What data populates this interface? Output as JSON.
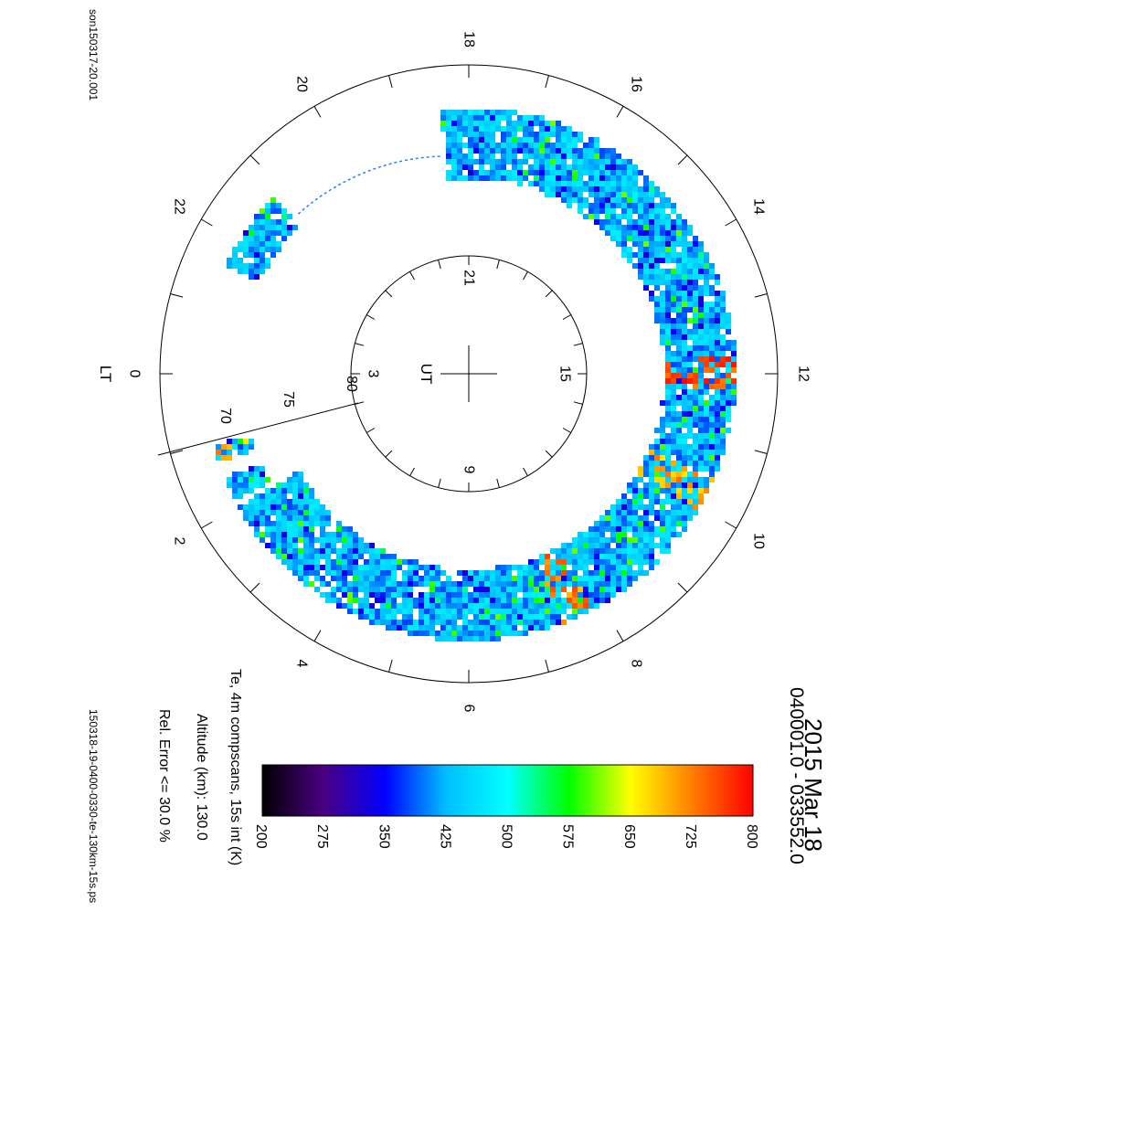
{
  "header": {
    "left_file": "son150317-20.001",
    "right_file": "150318-19-0400-0330-te-130km-15s.ps"
  },
  "chart_data": {
    "type": "heatmap",
    "projection": "polar (local time around the rim, latitude radially; figure rotated 90° clockwise)",
    "title_date": "2015 Mar 18",
    "time_range": "040001.0 - 033552.0",
    "lt_axis_label": "LT",
    "lt_ticks": [
      "0",
      "2",
      "4",
      "6",
      "8",
      "10",
      "12",
      "14",
      "16",
      "18",
      "20",
      "22"
    ],
    "ut_axis_label": "UT",
    "ut_ticks": [
      "3",
      "9",
      "15",
      "21"
    ],
    "lat_ticks": [
      "70",
      "75",
      "80"
    ],
    "colorbar": {
      "range": [
        200,
        800
      ],
      "ticks": [
        "200",
        "275",
        "350",
        "425",
        "500",
        "575",
        "650",
        "725",
        "800"
      ],
      "colors": [
        "#000000",
        "#4b0082",
        "#0000ff",
        "#00bfff",
        "#00ffff",
        "#00ff00",
        "#ffff00",
        "#ff7f00",
        "#ff0000"
      ]
    },
    "description_lines": [
      "Te, 4m compscans, 15s int (K)",
      "Altitude (km): 130.0",
      "Rel. Error <= 30.0 %"
    ],
    "ring_segments_lt": [
      [
        2.0,
        18.4
      ],
      [
        21.2,
        22.4
      ],
      [
        1.05,
        1.3
      ],
      [
        1.55,
        1.9
      ]
    ],
    "typical_value_K": 430,
    "hot_spots": [
      {
        "lt": 12.0,
        "value_K": 760
      },
      {
        "lt": 10.2,
        "value_K": 700
      },
      {
        "lt": 7.6,
        "value_K": 720
      },
      {
        "lt": 1.2,
        "value_K": 700
      }
    ]
  }
}
